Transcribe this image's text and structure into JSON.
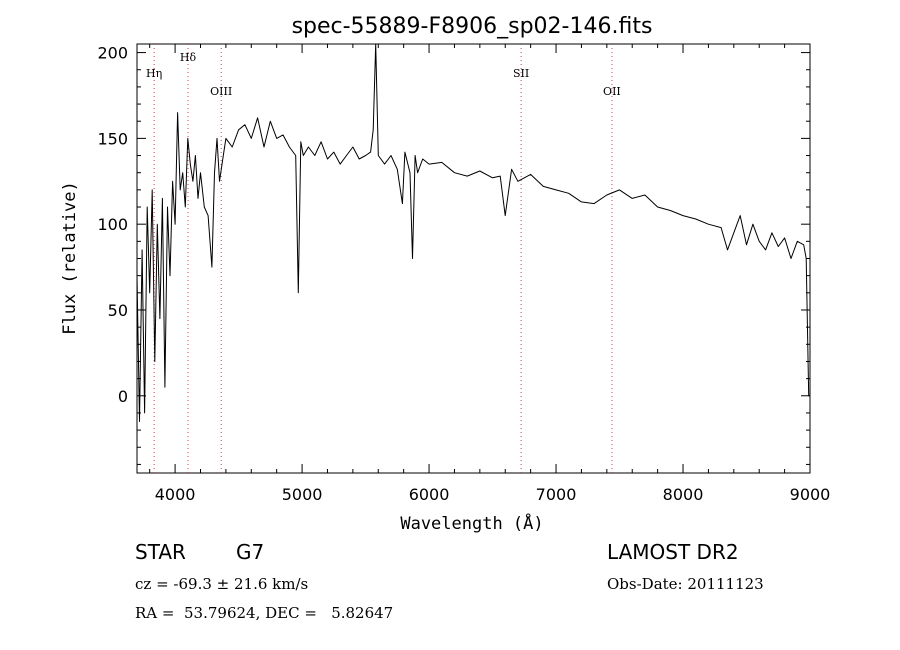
{
  "chart_data": {
    "type": "line",
    "title": "spec-55889-F8906_sp02-146.fits",
    "xlabel": "Wavelength (Å)",
    "ylabel": "Flux (relative)",
    "xlim": [
      3700,
      9000
    ],
    "ylim": [
      -45,
      205
    ],
    "xticks": [
      4000,
      5000,
      6000,
      7000,
      8000,
      9000
    ],
    "yticks": [
      0,
      50,
      100,
      150,
      200
    ],
    "grid": false,
    "series": [
      {
        "x": [
          3700,
          3720,
          3740,
          3760,
          3780,
          3800,
          3820,
          3840,
          3860,
          3880,
          3900,
          3920,
          3940,
          3960,
          3980,
          4000,
          4020,
          4040,
          4060,
          4080,
          4100,
          4120,
          4140,
          4160,
          4180,
          4200,
          4230,
          4260,
          4290,
          4310,
          4330,
          4350,
          4380,
          4400,
          4450,
          4500,
          4550,
          4600,
          4650,
          4700,
          4750,
          4800,
          4850,
          4900,
          4950,
          4970,
          4990,
          5010,
          5050,
          5100,
          5150,
          5200,
          5250,
          5300,
          5350,
          5400,
          5450,
          5500,
          5540,
          5560,
          5580,
          5600,
          5650,
          5700,
          5750,
          5790,
          5810,
          5850,
          5870,
          5890,
          5910,
          5950,
          6000,
          6100,
          6200,
          6300,
          6400,
          6500,
          6560,
          6600,
          6650,
          6700,
          6800,
          6900,
          7000,
          7100,
          7200,
          7300,
          7400,
          7500,
          7600,
          7700,
          7800,
          7900,
          8000,
          8100,
          8200,
          8300,
          8350,
          8400,
          8450,
          8500,
          8550,
          8600,
          8650,
          8700,
          8750,
          8800,
          8850,
          8900,
          8950,
          8970,
          8990,
          9000
        ],
        "y": [
          70,
          -15,
          85,
          -10,
          110,
          60,
          120,
          20,
          100,
          45,
          115,
          5,
          110,
          70,
          125,
          100,
          165,
          120,
          130,
          110,
          150,
          135,
          125,
          140,
          115,
          130,
          110,
          105,
          75,
          130,
          150,
          125,
          140,
          150,
          145,
          155,
          158,
          150,
          162,
          145,
          160,
          150,
          152,
          145,
          140,
          60,
          148,
          140,
          145,
          140,
          148,
          138,
          142,
          135,
          140,
          145,
          138,
          140,
          142,
          155,
          205,
          140,
          135,
          140,
          132,
          112,
          142,
          130,
          80,
          140,
          130,
          138,
          135,
          136,
          130,
          128,
          131,
          127,
          128,
          105,
          132,
          125,
          129,
          122,
          120,
          118,
          113,
          112,
          117,
          120,
          115,
          117,
          110,
          108,
          105,
          103,
          100,
          98,
          85,
          95,
          105,
          88,
          100,
          90,
          85,
          95,
          87,
          92,
          80,
          90,
          88,
          80,
          0,
          0
        ]
      }
    ],
    "annotations": [
      {
        "x": 3835,
        "label": "Hη"
      },
      {
        "x": 4102,
        "label": "Hδ"
      },
      {
        "x": 4363,
        "label": "OIII"
      },
      {
        "x": 6725,
        "label": "SII"
      },
      {
        "x": 7440,
        "label": "OII"
      }
    ]
  },
  "info": {
    "object_class": "STAR",
    "subclass": "G7",
    "survey": "LAMOST DR2",
    "redshift": "cz = -69.3 ± 21.6 km/s",
    "obs_date": "Obs-Date: 20111123",
    "coords": "RA =  53.79624, DEC =   5.82647"
  }
}
